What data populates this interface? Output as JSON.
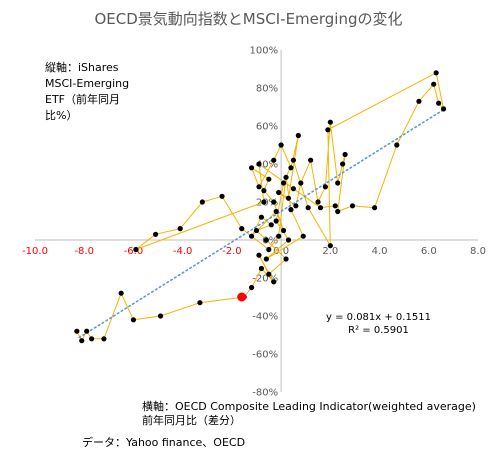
{
  "chart_data": {
    "type": "scatter",
    "title": "OECD景気動向指数とMSCI-Emergingの変化",
    "ylabel": "縦軸：iShares\nMSCI-Emerging\nETF（前年同月\n比%）",
    "xlabel": "横軸：OECD Composite Leading Indicator(weighted average)\n前年同月比（差分）",
    "source": "データ：Yahoo finance、OECD",
    "trendline_equation": "y = 0.081x + 0.1511\nR² = 0.5901",
    "trendline": {
      "slope": 0.081,
      "intercept": 0.1511,
      "x_range": [
        -8.2,
        6.6
      ],
      "color": "#5b9bd5",
      "style": "dotted"
    },
    "xlim": [
      -10,
      8
    ],
    "ylim": [
      -0.8,
      1.0
    ],
    "x_ticks": [
      "-10.0",
      "-8.0",
      "-6.0",
      "-4.0",
      "-2.0",
      "0.0",
      "2.0",
      "4.0",
      "6.0",
      "8.0"
    ],
    "x_tick_values": [
      -10,
      -8,
      -6,
      -4,
      -2,
      0,
      2,
      4,
      6,
      8
    ],
    "y_ticks": [
      "-80%",
      "-60%",
      "-40%",
      "-20%",
      "0%",
      "20%",
      "40%",
      "60%",
      "80%",
      "100%"
    ],
    "y_tick_values": [
      -0.8,
      -0.6,
      -0.4,
      -0.2,
      0,
      0.2,
      0.4,
      0.6,
      0.8,
      1.0
    ],
    "grid": false,
    "colors": {
      "points": "#000000",
      "line": "#f5b400",
      "highlight": "#ff0000",
      "negative_tick": "#ff0000",
      "title": "#595959"
    },
    "series": [
      {
        "points": [
          [
            -8.3,
            -0.48
          ],
          [
            -8.1,
            -0.53
          ],
          [
            -7.9,
            -0.48
          ],
          [
            -7.7,
            -0.52
          ],
          [
            -7.2,
            -0.52
          ],
          [
            -6.5,
            -0.28
          ],
          [
            -6.0,
            -0.42
          ],
          [
            -4.9,
            -0.4
          ],
          [
            -3.3,
            -0.33
          ],
          [
            -1.5,
            -0.3
          ],
          [
            -1.2,
            -0.25
          ],
          [
            -0.8,
            -0.15
          ],
          [
            -0.3,
            -0.22
          ],
          [
            -0.9,
            -0.08
          ],
          [
            -0.5,
            -0.18
          ],
          [
            0.2,
            -0.1
          ],
          [
            -0.6,
            0.0
          ],
          [
            -1.0,
            0.05
          ],
          [
            -0.4,
            0.08
          ],
          [
            -0.8,
            0.12
          ],
          [
            -1.2,
            0.02
          ],
          [
            -0.2,
            0.15
          ],
          [
            0.1,
            0.05
          ],
          [
            -0.3,
            0.2
          ],
          [
            -0.7,
            0.26
          ],
          [
            -0.5,
            0.32
          ],
          [
            -1.2,
            0.38
          ],
          [
            -0.9,
            0.28
          ],
          [
            -0.3,
            0.42
          ],
          [
            0.0,
            0.5
          ],
          [
            0.4,
            0.38
          ],
          [
            0.7,
            0.55
          ],
          [
            0.3,
            0.22
          ],
          [
            -0.1,
            0.25
          ],
          [
            0.6,
            0.18
          ],
          [
            0.8,
            0.3
          ],
          [
            1.2,
            0.42
          ],
          [
            1.5,
            0.2
          ],
          [
            1.8,
            0.28
          ],
          [
            2.0,
            0.62
          ],
          [
            2.3,
            0.3
          ],
          [
            2.5,
            0.4
          ],
          [
            2.6,
            0.45
          ],
          [
            2.3,
            0.15
          ],
          [
            2.9,
            0.18
          ],
          [
            3.8,
            0.17
          ],
          [
            4.7,
            0.5
          ],
          [
            5.6,
            0.73
          ],
          [
            6.2,
            0.82
          ],
          [
            6.4,
            0.72
          ],
          [
            6.6,
            0.69
          ],
          [
            6.3,
            0.88
          ],
          [
            1.9,
            0.58
          ],
          [
            2.0,
            -0.03
          ],
          [
            1.1,
            0.17
          ],
          [
            0.5,
            0.42
          ],
          [
            0.1,
            0.3
          ],
          [
            -0.2,
            0.1
          ],
          [
            0.3,
            0.0
          ],
          [
            -0.6,
            -0.1
          ],
          [
            0.9,
            0.02
          ],
          [
            0.4,
            0.16
          ],
          [
            0.2,
            0.33
          ],
          [
            -0.1,
            0.02
          ],
          [
            -0.5,
            -0.05
          ],
          [
            -1.6,
            0.06
          ],
          [
            -2.4,
            0.23
          ],
          [
            -3.2,
            0.2
          ],
          [
            -4.1,
            0.06
          ],
          [
            -5.1,
            0.03
          ],
          [
            -5.9,
            -0.05
          ],
          [
            -0.7,
            0.2
          ],
          [
            -0.9,
            0.4
          ],
          [
            0.5,
            0.27
          ],
          [
            1.6,
            0.17
          ],
          [
            2.2,
            0.18
          ]
        ]
      }
    ],
    "highlight_point": [
      -1.6,
      -0.3
    ]
  }
}
